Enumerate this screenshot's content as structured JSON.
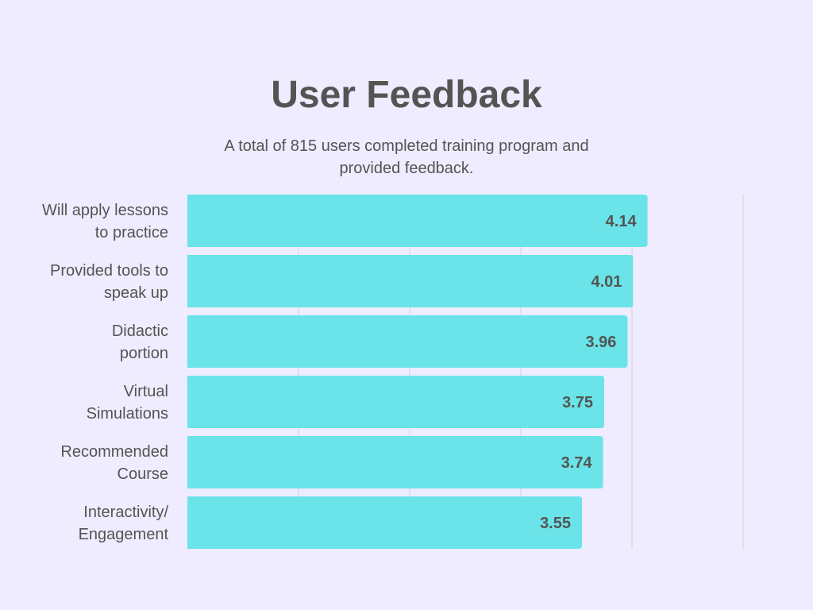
{
  "chart_data": {
    "type": "bar",
    "orientation": "horizontal",
    "title": "User Feedback",
    "subtitle": "A total of 815 users completed training program and provided feedback.",
    "categories": [
      [
        "Will apply lessons",
        "to practice"
      ],
      [
        "Provided tools to",
        "speak up"
      ],
      [
        "Didactic",
        "portion"
      ],
      [
        "Virtual",
        "Simulations"
      ],
      [
        "Recommended",
        "Course"
      ],
      [
        "Interactivity/",
        "Engagement"
      ]
    ],
    "values": [
      4.14,
      4.01,
      3.96,
      3.75,
      3.74,
      3.55
    ],
    "value_labels": [
      "4.14",
      "4.01",
      "3.96",
      "3.75",
      "3.74",
      "3.55"
    ],
    "xlim": [
      0,
      5
    ],
    "grid": true,
    "colors": {
      "bar": "#6ae4e8",
      "grid": "#d2d0e0",
      "text": "#545454",
      "background": "#eeecfe"
    }
  }
}
